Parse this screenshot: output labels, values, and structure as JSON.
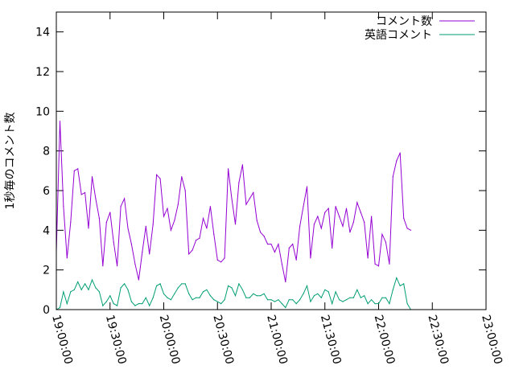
{
  "chart_data": {
    "type": "line",
    "title": "",
    "xlabel": "",
    "ylabel": "1秒毎のコメント数",
    "x_ticks": [
      "19:00:00",
      "19:30:00",
      "20:00:00",
      "20:30:00",
      "21:00:00",
      "21:30:00",
      "22:00:00",
      "22:30:00",
      "23:00:00"
    ],
    "y_ticks": [
      "0",
      "2",
      "4",
      "6",
      "8",
      "10",
      "12",
      "14"
    ],
    "xlim": [
      "19:00:00",
      "23:00:00"
    ],
    "ylim": [
      0,
      15
    ],
    "grid": false,
    "legend_position": "top-right",
    "sample_interval_seconds": 120,
    "series": [
      {
        "name": "コメント数",
        "color": "#9400d3",
        "values": [
          2.9,
          9.5,
          5.2,
          2.6,
          4.4,
          7.0,
          7.1,
          5.8,
          5.9,
          4.1,
          6.7,
          5.6,
          4.6,
          2.2,
          4.4,
          4.9,
          3.4,
          2.2,
          5.2,
          5.6,
          4.1,
          3.3,
          2.3,
          1.5,
          2.9,
          4.2,
          2.8,
          4.3,
          6.8,
          6.6,
          4.7,
          5.1,
          4.0,
          4.5,
          5.3,
          6.7,
          6.0,
          2.8,
          3.0,
          3.5,
          3.6,
          4.6,
          4.1,
          5.2,
          3.8,
          2.5,
          2.4,
          2.6,
          7.1,
          5.6,
          4.3,
          6.4,
          7.3,
          5.3,
          5.6,
          5.9,
          4.5,
          3.9,
          3.7,
          3.3,
          3.3,
          2.9,
          3.3,
          2.3,
          1.4,
          3.1,
          3.3,
          2.5,
          4.2,
          5.2,
          6.2,
          2.6,
          4.3,
          4.7,
          4.1,
          4.9,
          5.1,
          3.1,
          5.2,
          4.7,
          4.2,
          5.1,
          3.9,
          4.4,
          5.4,
          4.9,
          4.4,
          2.6,
          4.7,
          2.3,
          2.2,
          3.8,
          3.4,
          2.3,
          6.7,
          7.5,
          7.9,
          4.6,
          4.1,
          4.0
        ],
        "end_point": 99
      },
      {
        "name": "英語コメント",
        "color": "#009e73",
        "values": [
          0.0,
          0.1,
          0.9,
          0.3,
          0.9,
          1.0,
          1.4,
          1.0,
          1.3,
          1.0,
          1.5,
          1.1,
          0.9,
          0.2,
          0.4,
          0.7,
          0.3,
          0.2,
          1.1,
          1.3,
          1.0,
          0.4,
          0.2,
          0.3,
          0.3,
          0.6,
          0.2,
          0.6,
          1.2,
          1.3,
          0.8,
          0.6,
          0.5,
          0.8,
          1.1,
          1.3,
          1.3,
          0.8,
          0.5,
          0.6,
          0.6,
          0.9,
          1.0,
          0.7,
          0.5,
          0.4,
          0.3,
          0.5,
          1.2,
          1.1,
          0.7,
          1.3,
          1.0,
          0.6,
          0.6,
          0.8,
          0.7,
          0.7,
          0.8,
          0.5,
          0.5,
          0.4,
          0.5,
          0.3,
          0.1,
          0.5,
          0.5,
          0.3,
          0.5,
          0.8,
          1.2,
          0.4,
          0.7,
          0.8,
          0.6,
          1.0,
          0.9,
          0.3,
          0.9,
          0.5,
          0.4,
          0.5,
          0.6,
          0.6,
          1.0,
          0.6,
          0.7,
          0.3,
          0.5,
          0.3,
          0.3,
          0.6,
          0.6,
          0.3,
          1.0,
          1.6,
          1.2,
          1.3,
          0.3,
          0.0
        ],
        "end_point": 99
      }
    ]
  }
}
